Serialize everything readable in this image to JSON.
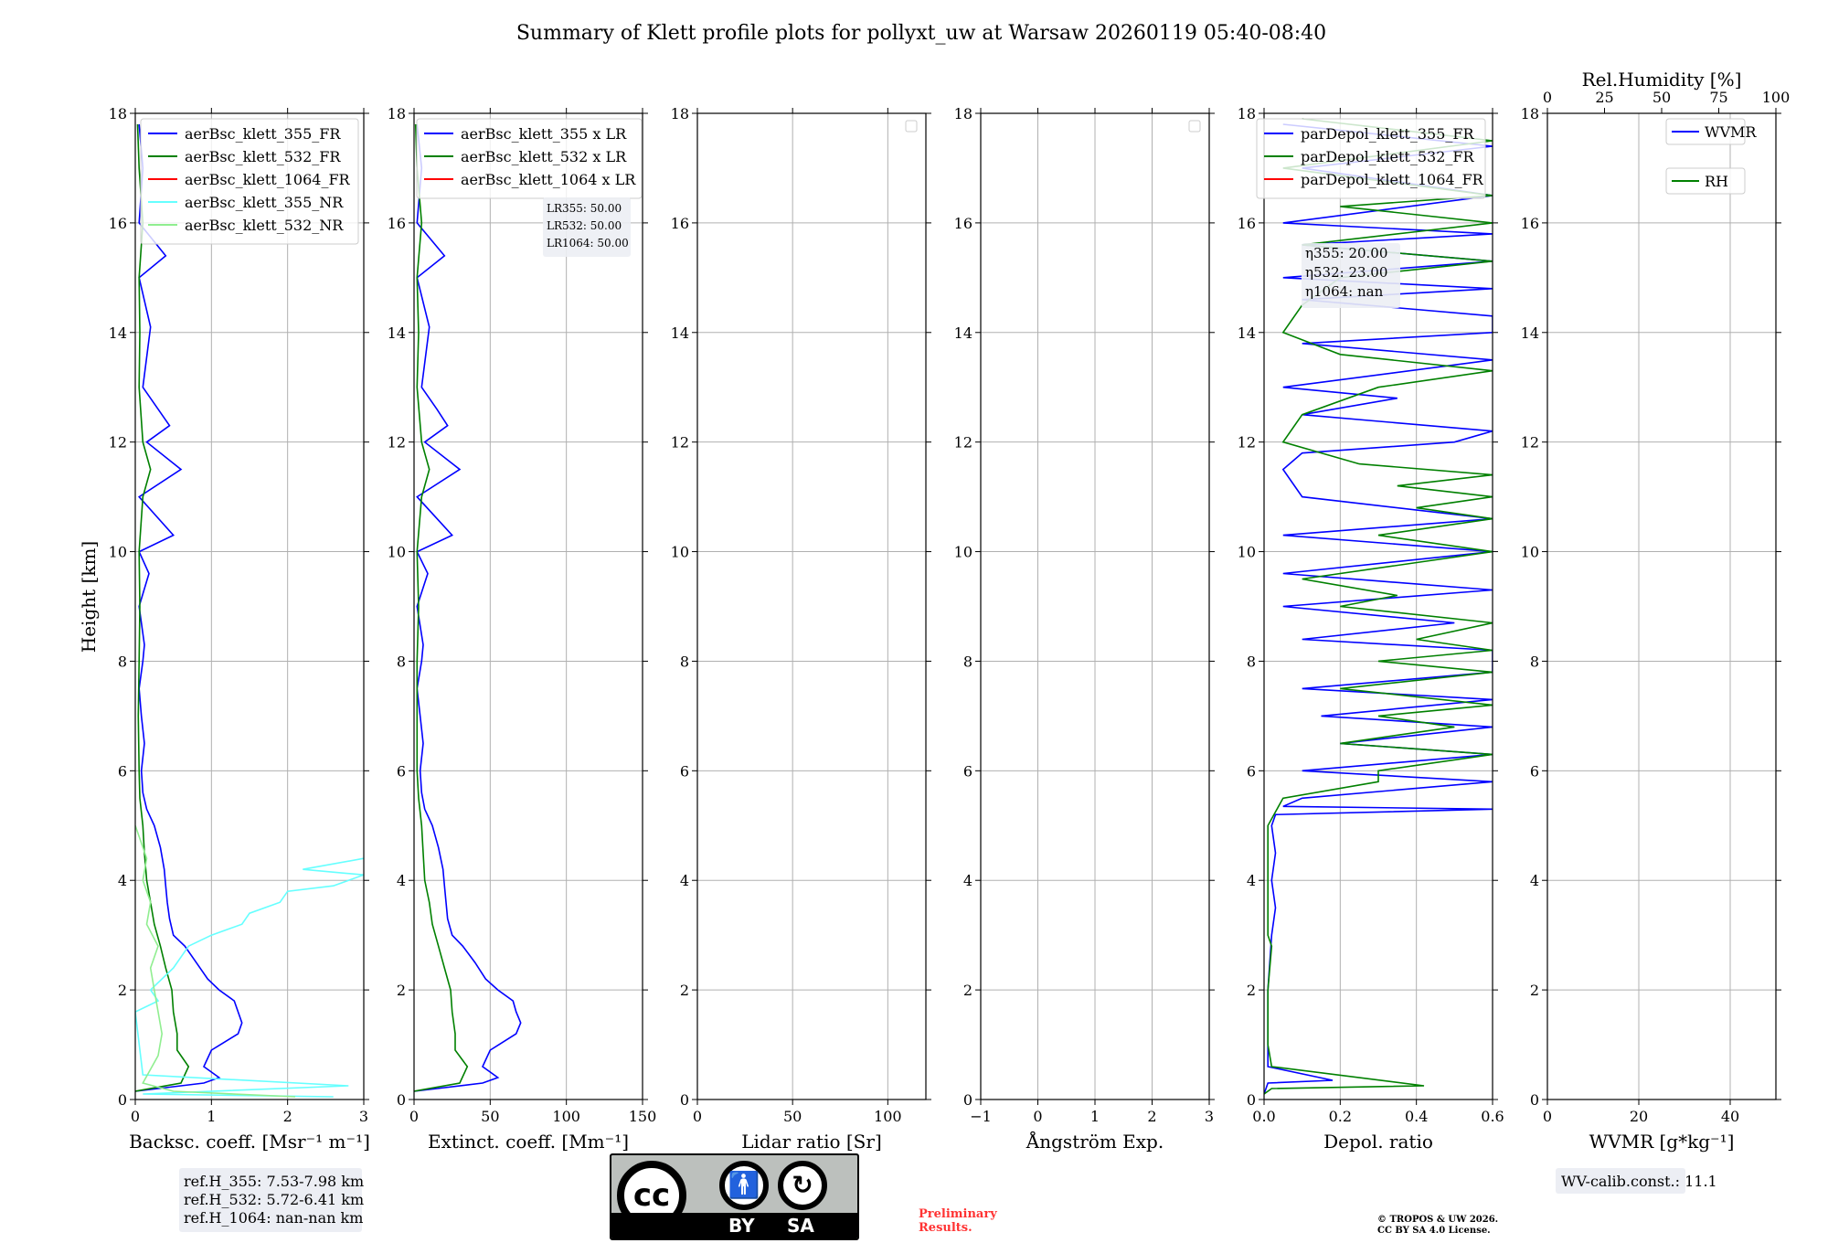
{
  "title": "Summary of Klett profile plots for pollyxt_uw at Warsaw 20260119 05:40-08:40",
  "ylabel": "Height [km]",
  "colors": {
    "c355": "#0000ff",
    "c532": "#008000",
    "c1064": "#ff0000",
    "c355nr": "#66ffff",
    "c532nr": "#90ee90"
  },
  "footer": {
    "ref_lines": [
      "ref.H_355: 7.53-7.98 km",
      "ref.H_532: 5.72-6.41 km",
      "ref.H_1064: nan-nan km"
    ],
    "license_by": "BY",
    "license_sa": "SA",
    "license_cc": "cc",
    "preliminary": [
      "Preliminary",
      "Results."
    ],
    "copyright": [
      "© TROPOS & UW 2026.",
      "CC BY SA 4.0 License."
    ],
    "wv_calib": "WV-calib.const.: 11.1"
  },
  "chart_data": [
    {
      "type": "line",
      "id": "bsc",
      "xlabel": "Backsc. coeff. [Msr⁻¹ m⁻¹]",
      "xlim": [
        0,
        3
      ],
      "xticks": [
        0,
        1,
        2,
        3
      ],
      "ylim": [
        0,
        18
      ],
      "yticks": [
        0,
        2,
        4,
        6,
        8,
        10,
        12,
        14,
        16,
        18
      ],
      "legend": [
        {
          "name": "aerBsc_klett_355_FR",
          "color": "#0000ff"
        },
        {
          "name": "aerBsc_klett_532_FR",
          "color": "#008000"
        },
        {
          "name": "aerBsc_klett_1064_FR",
          "color": "#ff0000"
        },
        {
          "name": "aerBsc_klett_355_NR",
          "color": "#66ffff"
        },
        {
          "name": "aerBsc_klett_532_NR",
          "color": "#90ee90"
        }
      ],
      "series": [
        {
          "name": "aerBsc_klett_355_FR",
          "color": "#0000ff",
          "h": [
            0.15,
            0.3,
            0.4,
            0.6,
            0.9,
            1.2,
            1.4,
            1.6,
            1.8,
            2.0,
            2.2,
            2.5,
            2.8,
            3.0,
            3.3,
            3.6,
            3.9,
            4.2,
            4.6,
            5.0,
            5.3,
            5.6,
            6.0,
            6.5,
            7.0,
            7.5,
            8.0,
            8.3,
            9.0,
            9.6,
            10.0,
            10.3,
            11.0,
            11.5,
            12.0,
            12.3,
            12.6,
            13.0,
            14.1,
            15.0,
            15.4,
            16.0,
            17.0,
            17.8
          ],
          "v": [
            0.0,
            0.9,
            1.1,
            0.9,
            1.0,
            1.35,
            1.4,
            1.35,
            1.3,
            1.1,
            0.95,
            0.8,
            0.65,
            0.5,
            0.45,
            0.42,
            0.4,
            0.38,
            0.33,
            0.25,
            0.15,
            0.1,
            0.08,
            0.12,
            0.08,
            0.05,
            0.1,
            0.12,
            0.05,
            0.18,
            0.05,
            0.5,
            0.05,
            0.6,
            0.15,
            0.45,
            0.3,
            0.1,
            0.2,
            0.05,
            0.4,
            0.05,
            0.1,
            0.05
          ]
        },
        {
          "name": "aerBsc_klett_532_FR",
          "color": "#008000",
          "h": [
            0.15,
            0.3,
            0.6,
            0.9,
            1.2,
            1.6,
            2.0,
            2.4,
            2.8,
            3.2,
            3.6,
            4.0,
            4.5,
            5.0,
            5.5,
            6.0,
            7.0,
            8.0,
            9.0,
            10.0,
            11.0,
            11.5,
            12.0,
            13.0,
            14.0,
            15.0,
            16.0,
            17.0,
            17.8
          ],
          "v": [
            0.0,
            0.6,
            0.7,
            0.55,
            0.55,
            0.5,
            0.48,
            0.4,
            0.33,
            0.25,
            0.2,
            0.15,
            0.12,
            0.1,
            0.06,
            0.05,
            0.04,
            0.05,
            0.06,
            0.05,
            0.1,
            0.2,
            0.1,
            0.05,
            0.06,
            0.05,
            0.1,
            0.05,
            0.03
          ]
        },
        {
          "name": "aerBsc_klett_355_NR",
          "color": "#66ffff",
          "h": [
            0.05,
            0.1,
            0.25,
            0.45,
            1.6,
            1.8,
            2.0,
            2.4,
            2.8,
            3.0,
            3.2,
            3.4,
            3.6,
            3.8,
            3.9,
            4.1,
            4.2,
            4.4
          ],
          "v": [
            2.6,
            0.1,
            2.8,
            0.1,
            0.0,
            0.3,
            0.2,
            0.5,
            0.7,
            1.0,
            1.4,
            1.5,
            1.9,
            2.0,
            2.6,
            3.0,
            2.2,
            3.0
          ]
        },
        {
          "name": "aerBsc_klett_532_NR",
          "color": "#90ee90",
          "h": [
            0.05,
            0.15,
            0.3,
            0.8,
            1.2,
            1.6,
            2.0,
            2.4,
            2.8,
            3.2,
            3.6,
            4.0,
            4.4,
            4.8,
            5.0
          ],
          "v": [
            2.1,
            0.5,
            0.1,
            0.3,
            0.35,
            0.3,
            0.25,
            0.2,
            0.3,
            0.15,
            0.2,
            0.1,
            0.15,
            0.05,
            0.0
          ]
        }
      ],
      "annotations": []
    },
    {
      "type": "line",
      "id": "ext",
      "xlabel": "Extinct. coeff. [Mm⁻¹]",
      "xlim": [
        0,
        150
      ],
      "xticks": [
        0,
        50,
        100,
        150
      ],
      "ylim": [
        0,
        18
      ],
      "yticks": [
        0,
        2,
        4,
        6,
        8,
        10,
        12,
        14,
        16,
        18
      ],
      "legend": [
        {
          "name": "aerBsc_klett_355 x LR",
          "color": "#0000ff"
        },
        {
          "name": "aerBsc_klett_532 x LR",
          "color": "#008000"
        },
        {
          "name": "aerBsc_klett_1064 x LR",
          "color": "#ff0000"
        }
      ],
      "series": [
        {
          "name": "aerBsc_klett_355 x LR",
          "color": "#0000ff",
          "h": [
            0.15,
            0.3,
            0.4,
            0.6,
            0.9,
            1.2,
            1.4,
            1.6,
            1.8,
            2.0,
            2.2,
            2.5,
            2.8,
            3.0,
            3.3,
            3.6,
            3.9,
            4.2,
            4.6,
            5.0,
            5.3,
            5.6,
            6.0,
            6.5,
            7.0,
            7.5,
            8.0,
            8.3,
            9.0,
            9.6,
            10.0,
            10.3,
            11.0,
            11.5,
            12.0,
            12.3,
            12.6,
            13.0,
            14.1,
            15.0,
            15.4,
            16.0,
            17.0,
            17.8
          ],
          "v": [
            0,
            45,
            55,
            45,
            50,
            67,
            70,
            67,
            65,
            55,
            47,
            40,
            32,
            25,
            22,
            21,
            20,
            19,
            16,
            12,
            7,
            5,
            4,
            6,
            4,
            2,
            5,
            6,
            2,
            9,
            2,
            25,
            2,
            30,
            7,
            22,
            15,
            5,
            10,
            2,
            20,
            2,
            5,
            2
          ]
        },
        {
          "name": "aerBsc_klett_532 x LR",
          "color": "#008000",
          "h": [
            0.15,
            0.3,
            0.6,
            0.9,
            1.2,
            1.6,
            2.0,
            2.4,
            2.8,
            3.2,
            3.6,
            4.0,
            4.5,
            5.0,
            5.5,
            6.0,
            7.0,
            8.0,
            9.0,
            10.0,
            11.0,
            11.5,
            12.0,
            13.0,
            14.0,
            15.0,
            16.0,
            17.0,
            17.8
          ],
          "v": [
            0,
            30,
            35,
            27,
            27,
            25,
            24,
            20,
            16,
            12,
            10,
            7,
            6,
            5,
            3,
            2,
            2,
            2,
            3,
            2,
            5,
            10,
            5,
            2,
            3,
            2,
            5,
            2,
            1
          ]
        }
      ],
      "annotations": [
        "LR355: 50.00",
        "LR532: 50.00",
        "LR1064: 50.00"
      ]
    },
    {
      "type": "line",
      "id": "lr",
      "xlabel": "Lidar ratio [Sr]",
      "xlim": [
        0,
        120
      ],
      "xticks": [
        0,
        50,
        100
      ],
      "ylim": [
        0,
        18
      ],
      "yticks": [
        0,
        2,
        4,
        6,
        8,
        10,
        12,
        14,
        16,
        18
      ],
      "legend": [],
      "series": [],
      "annotations": []
    },
    {
      "type": "line",
      "id": "ae",
      "xlabel": "Ångström Exp.",
      "xlim": [
        -1,
        3
      ],
      "xticks": [
        -1,
        0,
        1,
        2,
        3
      ],
      "ylim": [
        0,
        18
      ],
      "yticks": [
        0,
        2,
        4,
        6,
        8,
        10,
        12,
        14,
        16,
        18
      ],
      "legend": [],
      "series": [],
      "annotations": []
    },
    {
      "type": "line",
      "id": "depol",
      "xlabel": "Depol. ratio",
      "xlim": [
        0,
        0.6
      ],
      "xticks": [
        0.0,
        0.2,
        0.4,
        0.6
      ],
      "ylim": [
        0,
        18
      ],
      "yticks": [
        0,
        2,
        4,
        6,
        8,
        10,
        12,
        14,
        16,
        18
      ],
      "legend": [
        {
          "name": "parDepol_klett_355_FR",
          "color": "#0000ff"
        },
        {
          "name": "parDepol_klett_532_FR",
          "color": "#008000"
        },
        {
          "name": "parDepol_klett_1064_FR",
          "color": "#ff0000"
        }
      ],
      "series": [
        {
          "name": "parDepol_klett_355_FR",
          "color": "#0000ff",
          "h": [
            0.1,
            0.3,
            0.35,
            0.6,
            1.0,
            2.0,
            3.0,
            3.5,
            4.0,
            4.5,
            5.0,
            5.2,
            5.3,
            5.35,
            5.5,
            5.8,
            6.0,
            6.3,
            6.5,
            6.8,
            7.0,
            7.3,
            7.5,
            7.8,
            8.0,
            8.2,
            8.4,
            8.7,
            9.0,
            9.3,
            9.6,
            10.0,
            10.3,
            10.6,
            11.0,
            11.5,
            11.8,
            12.0,
            12.2,
            12.5,
            12.8,
            13.0,
            13.5,
            13.8,
            14.0,
            14.3,
            14.6,
            14.8,
            15.0,
            15.3,
            15.6,
            15.8,
            16.0,
            16.5,
            17.0,
            17.4,
            17.8
          ],
          "v": [
            0.0,
            0.01,
            0.18,
            0.01,
            0.01,
            0.01,
            0.02,
            0.03,
            0.02,
            0.03,
            0.02,
            0.03,
            0.6,
            0.05,
            0.1,
            0.6,
            0.1,
            0.6,
            0.2,
            0.6,
            0.15,
            0.6,
            0.1,
            0.6,
            0.6,
            0.6,
            0.1,
            0.5,
            0.05,
            0.6,
            0.05,
            0.6,
            0.05,
            0.6,
            0.1,
            0.05,
            0.1,
            0.5,
            0.6,
            0.1,
            0.35,
            0.05,
            0.6,
            0.1,
            0.6,
            0.6,
            0.1,
            0.6,
            0.05,
            0.6,
            0.1,
            0.6,
            0.05,
            0.6,
            0.1,
            0.6,
            0.05
          ]
        },
        {
          "name": "parDepol_klett_532_FR",
          "color": "#008000",
          "h": [
            0.1,
            0.2,
            0.25,
            0.6,
            1.0,
            2.0,
            2.8,
            3.0,
            4.0,
            5.0,
            5.5,
            5.8,
            6.0,
            6.3,
            6.5,
            6.8,
            7.0,
            7.2,
            7.5,
            7.8,
            8.0,
            8.2,
            8.4,
            8.7,
            9.0,
            9.2,
            9.5,
            10.0,
            10.3,
            10.6,
            10.8,
            11.0,
            11.2,
            11.4,
            11.6,
            12.0,
            12.5,
            13.0,
            13.3,
            13.6,
            14.0,
            14.5,
            15.0,
            15.3,
            15.6,
            16.0,
            16.3,
            16.5,
            17.0,
            17.5,
            17.9
          ],
          "v": [
            0.0,
            0.02,
            0.42,
            0.02,
            0.01,
            0.01,
            0.02,
            0.01,
            0.01,
            0.01,
            0.05,
            0.3,
            0.3,
            0.6,
            0.2,
            0.5,
            0.3,
            0.6,
            0.2,
            0.6,
            0.3,
            0.6,
            0.4,
            0.6,
            0.2,
            0.35,
            0.1,
            0.6,
            0.3,
            0.6,
            0.4,
            0.6,
            0.35,
            0.6,
            0.25,
            0.05,
            0.1,
            0.3,
            0.6,
            0.2,
            0.05,
            0.1,
            0.2,
            0.6,
            0.1,
            0.6,
            0.2,
            0.6,
            0.05,
            0.6,
            0.1
          ]
        }
      ],
      "annotations": [
        "η355: 20.00",
        "η532: 23.00",
        "η1064: nan"
      ]
    },
    {
      "type": "line",
      "id": "wv",
      "xlabel": "WVMR [g*kg⁻¹]",
      "top_xlabel": "Rel.Humidity [%]",
      "xlim": [
        0,
        50
      ],
      "xticks": [
        0,
        20,
        40
      ],
      "top_xlim": [
        0,
        100
      ],
      "top_xticks": [
        0,
        25,
        50,
        75,
        100
      ],
      "ylim": [
        0,
        18
      ],
      "yticks": [
        0,
        2,
        4,
        6,
        8,
        10,
        12,
        14,
        16,
        18
      ],
      "legend": [
        {
          "name": "WVMR",
          "color": "#0000ff"
        },
        {
          "name": "RH",
          "color": "#008000"
        }
      ],
      "series": [],
      "annotations": []
    }
  ]
}
